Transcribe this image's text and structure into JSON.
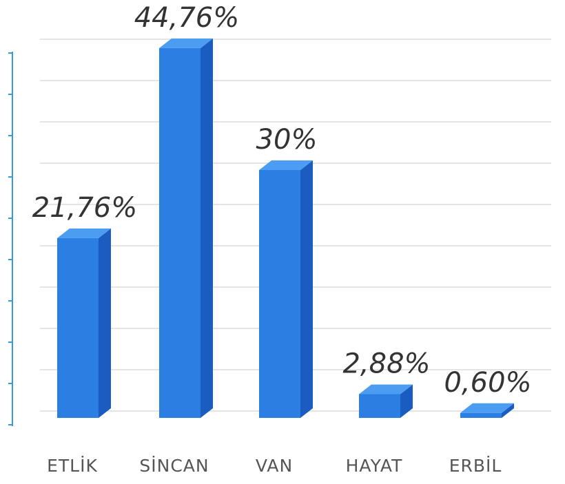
{
  "chart_data": {
    "type": "bar3d",
    "categories": [
      "ETLİK",
      "SİNCAN",
      "VAN",
      "HAYAT",
      "ERBİL"
    ],
    "values": [
      21.76,
      44.76,
      30,
      2.88,
      0.6
    ],
    "value_labels": [
      "21,76%",
      "44,76%",
      "30%",
      "2,88%",
      "0,60%"
    ],
    "color": "#2b7fe3",
    "ylim": [
      0,
      45
    ],
    "yticks": [
      0,
      5,
      10,
      15,
      20,
      25,
      30,
      35,
      40,
      45
    ],
    "grid": true
  }
}
